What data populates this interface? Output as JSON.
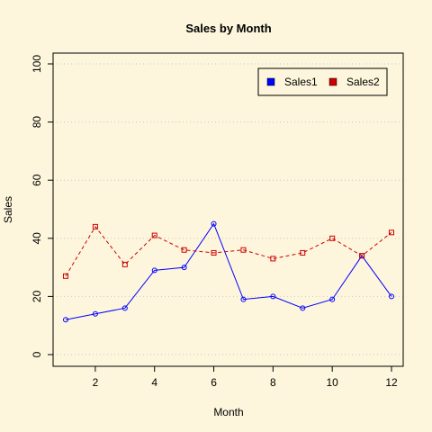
{
  "chart_data": {
    "type": "line",
    "title": "Sales by Month",
    "xlabel": "Month",
    "ylabel": "Sales",
    "x": [
      1,
      2,
      3,
      4,
      5,
      6,
      7,
      8,
      9,
      10,
      11,
      12
    ],
    "xlim": [
      1,
      12
    ],
    "ylim": [
      0,
      100
    ],
    "xticks": [
      2,
      4,
      6,
      8,
      10,
      12
    ],
    "yticks": [
      0,
      20,
      40,
      60,
      80,
      100
    ],
    "grid": "horizontal dotted",
    "legend_position": "top-right",
    "series": [
      {
        "name": "Sales1",
        "values": [
          12,
          14,
          16,
          29,
          30,
          45,
          19,
          20,
          16,
          19,
          34,
          20
        ],
        "color": "#0000ff",
        "marker": "circle",
        "line": "solid"
      },
      {
        "name": "Sales2",
        "values": [
          27,
          44,
          31,
          41,
          36,
          35,
          36,
          33,
          35,
          40,
          34,
          42
        ],
        "color": "#cc0000",
        "marker": "square",
        "line": "dashed"
      }
    ]
  },
  "colors": {
    "background": "#fdf6dc",
    "grid": "#c8c8c8",
    "axis": "#000000"
  }
}
